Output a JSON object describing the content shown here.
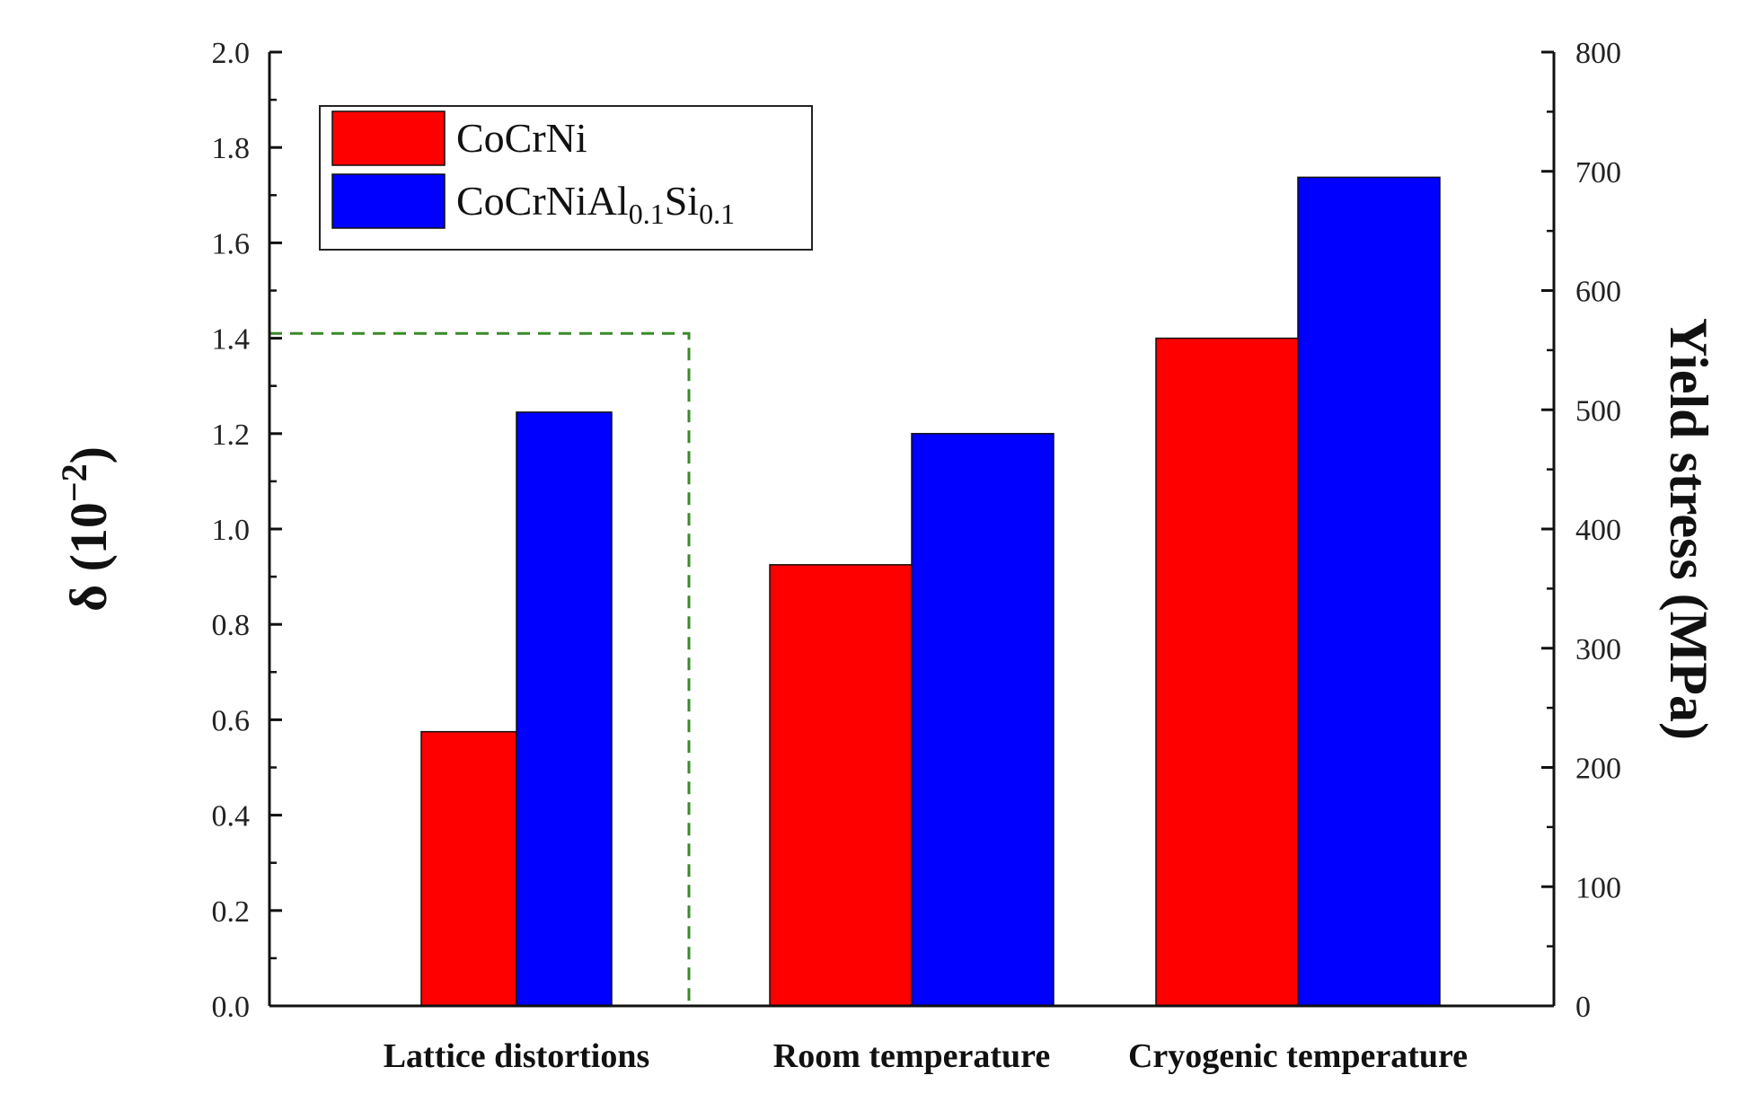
{
  "chart_data": {
    "type": "bar",
    "categories": [
      "Lattice distortions",
      "Room temperature",
      "Cryogenic temperature"
    ],
    "series": [
      {
        "name": "CoCrNi",
        "color": "#ff0000",
        "values": [
          0.575,
          370,
          560
        ]
      },
      {
        "name": "CoCrNiAl0.1Si0.1",
        "color": "#0000ff",
        "values": [
          1.245,
          480,
          695
        ]
      }
    ],
    "value_axes": [
      "left",
      "right",
      "right"
    ],
    "left_axis": {
      "label": "δ (10⁻²)",
      "label_main": "δ (10",
      "label_sup": "−2",
      "label_close": ")",
      "ylim": [
        0,
        2.0
      ],
      "ticks": [
        "0.0",
        "0.2",
        "0.4",
        "0.6",
        "0.8",
        "1.0",
        "1.2",
        "1.4",
        "1.6",
        "1.8",
        "2.0"
      ]
    },
    "right_axis": {
      "label": "Yield stress (MPa)",
      "ylim": [
        0,
        800
      ],
      "ticks": [
        "0",
        "100",
        "200",
        "300",
        "400",
        "500",
        "600",
        "700",
        "800"
      ]
    },
    "legend": {
      "position": "top-left",
      "entries": [
        {
          "name": "CoCrNi",
          "color": "#ff0000",
          "base": "CoCrNi",
          "parts": []
        },
        {
          "name": "CoCrNiAl0.1Si0.1",
          "color": "#0000ff",
          "base": "CoCrNiAl",
          "parts": [
            [
              "0.1",
              "sub"
            ],
            [
              "Si",
              "normal"
            ],
            [
              "0.1",
              "sub"
            ]
          ]
        }
      ]
    },
    "annotation": {
      "type": "dashed-box",
      "color": "#3a8a2a",
      "left_axis_value": 1.41,
      "encloses": "Lattice distortions"
    }
  }
}
